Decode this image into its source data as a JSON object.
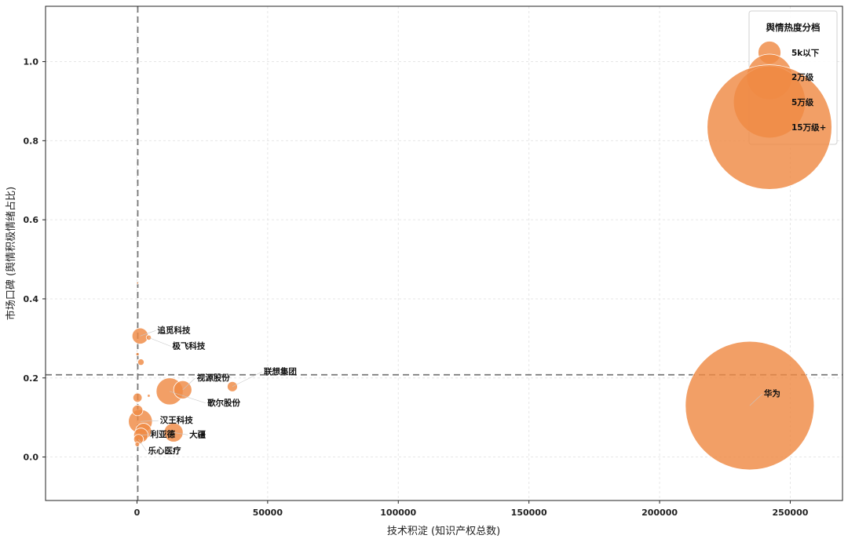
{
  "chart_data": {
    "type": "scatter",
    "title": "",
    "xlabel": "技术积淀 (知识产权总数)",
    "ylabel": "市场口碑 (舆情积极情绪占比)",
    "xlim": [
      -35000,
      270000
    ],
    "ylim": [
      -0.11,
      1.14
    ],
    "xticks": [
      0,
      50000,
      100000,
      150000,
      200000,
      250000
    ],
    "xtick_labels": [
      "0",
      "50000",
      "100000",
      "150000",
      "200000",
      "250000"
    ],
    "yticks": [
      0.0,
      0.2,
      0.4,
      0.6,
      0.8,
      1.0
    ],
    "ytick_labels": [
      "0.0",
      "0.2",
      "0.4",
      "0.6",
      "0.8",
      "1.0"
    ],
    "grid": true,
    "reference_lines": {
      "x": 300,
      "y": 0.208
    },
    "color": "#ef8a44",
    "legend": {
      "title": "舆情热度分档",
      "placement": "top-right",
      "entries": [
        {
          "label": "5k以下",
          "heat": 5000
        },
        {
          "label": "2万级",
          "heat": 20000
        },
        {
          "label": "5万级",
          "heat": 50000
        },
        {
          "label": "15万级+",
          "heat": 150000
        }
      ]
    },
    "points": [
      {
        "label": "华为",
        "x": 234500,
        "y": 0.13,
        "heat": 160000
      },
      {
        "label": "追觅科技",
        "x": 1200,
        "y": 0.306,
        "heat": 2500
      },
      {
        "label": "极飞科技",
        "x": 4500,
        "y": 0.302,
        "heat": 250
      },
      {
        "label": "",
        "x": 1500,
        "y": 0.24,
        "heat": 400
      },
      {
        "label": "",
        "x": 200,
        "y": 0.26,
        "heat": 100
      },
      {
        "label": "联想集团",
        "x": 36500,
        "y": 0.178,
        "heat": 1000
      },
      {
        "label": "视源股份",
        "x": 17500,
        "y": 0.17,
        "heat": 3200
      },
      {
        "label": "歌尔股份",
        "x": 12500,
        "y": 0.166,
        "heat": 7000
      },
      {
        "label": "汉王科技",
        "x": 1300,
        "y": 0.09,
        "heat": 5500
      },
      {
        "label": "",
        "x": 200,
        "y": 0.15,
        "heat": 800
      },
      {
        "label": "",
        "x": 200,
        "y": 0.118,
        "heat": 1100
      },
      {
        "label": "",
        "x": 2500,
        "y": 0.065,
        "heat": 2500
      },
      {
        "label": "利亚德",
        "x": 1500,
        "y": 0.055,
        "heat": 2000
      },
      {
        "label": "大疆",
        "x": 14000,
        "y": 0.062,
        "heat": 3500
      },
      {
        "label": "乐心医疗",
        "x": 600,
        "y": 0.045,
        "heat": 900
      },
      {
        "label": "",
        "x": 100,
        "y": 0.032,
        "heat": 200
      },
      {
        "label": "",
        "x": 4500,
        "y": 0.155,
        "heat": 80
      },
      {
        "label": "",
        "x": 200,
        "y": 0.44,
        "heat": 40
      }
    ]
  }
}
